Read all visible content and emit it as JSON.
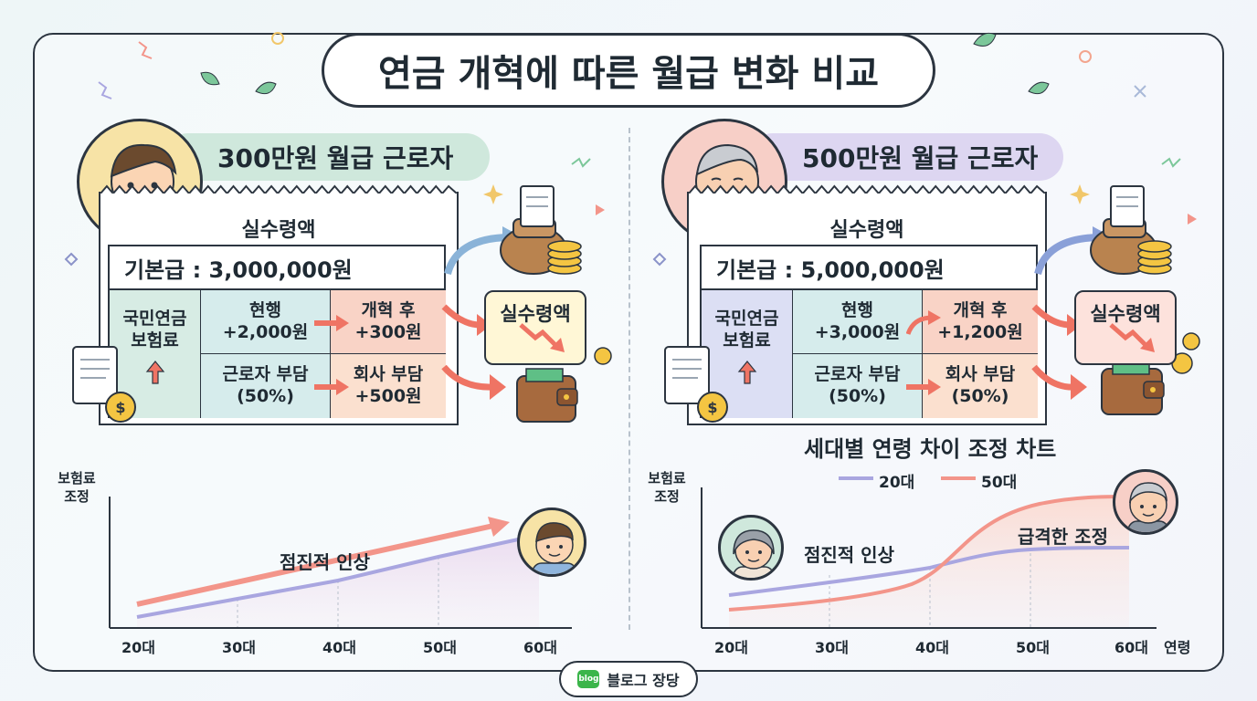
{
  "title": "연금 개혁에 따른 월급 변화 비교",
  "left": {
    "worker_label": "300만원 월급 근로자",
    "receipt_title": "실수령액",
    "base_salary": "기본급 : 3,000,000원",
    "pension_label": "국민연금 보험료",
    "current_label": "현행",
    "current_value": "+2,000원",
    "reform_label": "개혁 후",
    "reform_value": "+300원",
    "worker_share": "근로자 부담 (50%)",
    "company_share_label": "회사 부담",
    "company_share_value": "+500원",
    "side_box": "실수령액",
    "chart": {
      "ylabel": "보험료 조정",
      "annotation": "점진적 인상",
      "ticks": [
        "20대",
        "30대",
        "40대",
        "50대",
        "60대"
      ]
    }
  },
  "right": {
    "worker_label": "500만원 월급 근로자",
    "receipt_title": "실수령액",
    "base_salary": "기본급 : 5,000,000원",
    "pension_label": "국민연금 보험료",
    "current_label": "현행",
    "current_value": "+3,000원",
    "reform_label": "개혁 후",
    "reform_value": "+1,200원",
    "worker_share": "근로자 부담 (50%)",
    "company_share_label": "회사 부담",
    "company_share_value": "(50%)",
    "side_box": "실수령액",
    "chart": {
      "title": "세대별 연령 차이 조정 차트",
      "legend_a": "20대",
      "legend_b": "50대",
      "ylabel": "보험료 조정",
      "annotation_a": "점진적 인상",
      "annotation_b": "급격한 조정",
      "xlabel": "연령",
      "ticks": [
        "20대",
        "30대",
        "40대",
        "50대",
        "60대"
      ]
    }
  },
  "colors": {
    "green_cell": "#d7ece4",
    "teal_cell": "#d6ecec",
    "salmon_cell": "#f9d3c6",
    "peach_cell": "#fbe0cf",
    "lavender_cell": "#dcdff4",
    "pill_green": "#cfe8dc",
    "pill_purple": "#ddd6f1",
    "line_lavender": "#a9a6e0",
    "line_salmon": "#f3958a",
    "arrow_red": "#ef7464",
    "arrow_blue": "#7f9fc6"
  },
  "badge": {
    "logo": "blog",
    "text": "블로그 장당"
  }
}
